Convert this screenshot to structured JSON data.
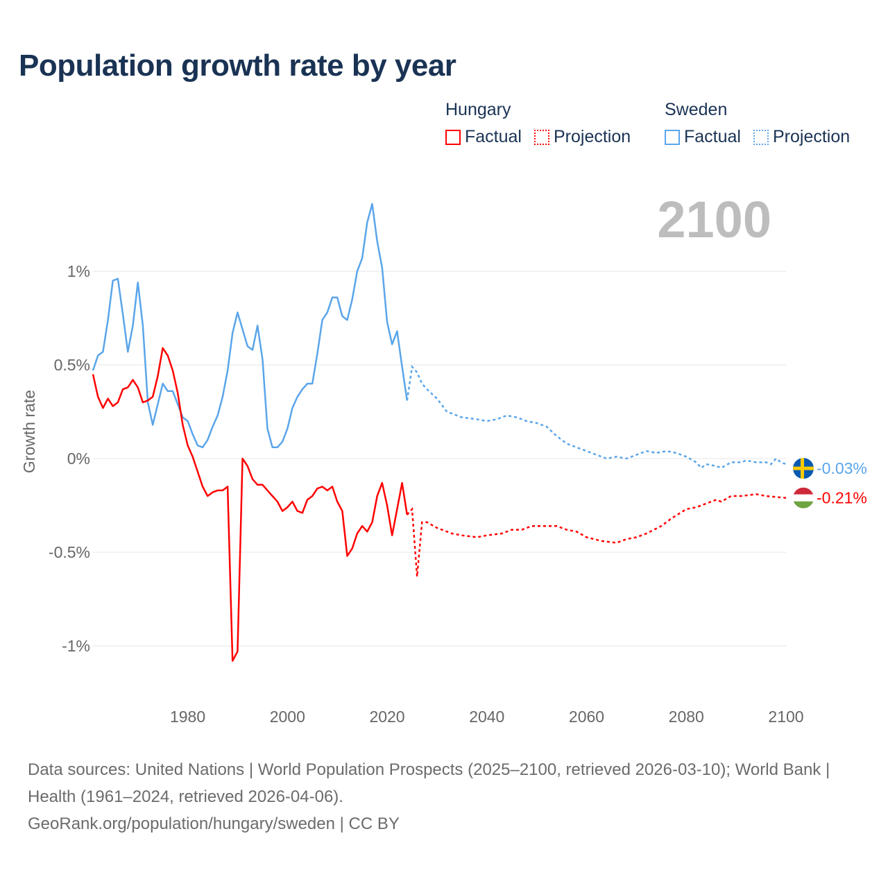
{
  "title": "Population growth rate by year",
  "legend": [
    {
      "country": "Hungary",
      "factual": "Factual",
      "projection": "Projection",
      "color": "#ff0000"
    },
    {
      "country": "Sweden",
      "factual": "Factual",
      "projection": "Projection",
      "color": "#5aa5ea"
    }
  ],
  "footer": {
    "sources": "Data sources: United Nations | World Population Prospects (2025–2100, retrieved 2026-03-10); World Bank | Health (1961–2024, retrieved 2026-04-06).",
    "link": "GeoRank.org/population/hungary/sweden | CC BY"
  },
  "chart_data": {
    "type": "line",
    "title": "Population growth rate by year",
    "ylabel": "Growth rate",
    "xlabel": "",
    "year_display": "2100",
    "xlim": [
      1961,
      2100
    ],
    "ylim": [
      -1.2,
      1.5
    ],
    "x_ticks": [
      1980,
      2000,
      2020,
      2040,
      2060,
      2080,
      2100
    ],
    "y_ticks": [
      {
        "v": 1,
        "label": "1%"
      },
      {
        "v": 0.5,
        "label": "0.5%"
      },
      {
        "v": 0,
        "label": "0%"
      },
      {
        "v": -0.5,
        "label": "-0.5%"
      },
      {
        "v": -1,
        "label": "-1%"
      }
    ],
    "grid": true,
    "series": [
      {
        "name": "Sweden",
        "color": "#5aa5ea",
        "end_label": "-0.03%",
        "flag": "sweden-flag",
        "factual": [
          [
            1961,
            0.47
          ],
          [
            1962,
            0.55
          ],
          [
            1963,
            0.57
          ],
          [
            1964,
            0.74
          ],
          [
            1965,
            0.95
          ],
          [
            1966,
            0.96
          ],
          [
            1967,
            0.77
          ],
          [
            1968,
            0.57
          ],
          [
            1969,
            0.71
          ],
          [
            1970,
            0.94
          ],
          [
            1971,
            0.71
          ],
          [
            1972,
            0.3
          ],
          [
            1973,
            0.18
          ],
          [
            1974,
            0.29
          ],
          [
            1975,
            0.4
          ],
          [
            1976,
            0.36
          ],
          [
            1977,
            0.36
          ],
          [
            1978,
            0.29
          ],
          [
            1979,
            0.22
          ],
          [
            1980,
            0.2
          ],
          [
            1981,
            0.13
          ],
          [
            1982,
            0.07
          ],
          [
            1983,
            0.06
          ],
          [
            1984,
            0.1
          ],
          [
            1985,
            0.17
          ],
          [
            1986,
            0.23
          ],
          [
            1987,
            0.33
          ],
          [
            1988,
            0.47
          ],
          [
            1989,
            0.67
          ],
          [
            1990,
            0.78
          ],
          [
            1991,
            0.69
          ],
          [
            1992,
            0.6
          ],
          [
            1993,
            0.58
          ],
          [
            1994,
            0.71
          ],
          [
            1995,
            0.53
          ],
          [
            1996,
            0.16
          ],
          [
            1997,
            0.06
          ],
          [
            1998,
            0.06
          ],
          [
            1999,
            0.09
          ],
          [
            2000,
            0.16
          ],
          [
            2001,
            0.27
          ],
          [
            2002,
            0.33
          ],
          [
            2003,
            0.37
          ],
          [
            2004,
            0.4
          ],
          [
            2005,
            0.4
          ],
          [
            2006,
            0.56
          ],
          [
            2007,
            0.74
          ],
          [
            2008,
            0.78
          ],
          [
            2009,
            0.86
          ],
          [
            2010,
            0.86
          ],
          [
            2011,
            0.76
          ],
          [
            2012,
            0.74
          ],
          [
            2013,
            0.85
          ],
          [
            2014,
            1.0
          ],
          [
            2015,
            1.07
          ],
          [
            2016,
            1.26
          ],
          [
            2017,
            1.36
          ],
          [
            2018,
            1.16
          ],
          [
            2019,
            1.02
          ],
          [
            2020,
            0.73
          ],
          [
            2021,
            0.61
          ],
          [
            2022,
            0.68
          ],
          [
            2023,
            0.49
          ],
          [
            2024,
            0.31
          ]
        ],
        "projection": [
          [
            2024,
            0.31
          ],
          [
            2025,
            0.49
          ],
          [
            2026,
            0.46
          ],
          [
            2027,
            0.4
          ],
          [
            2028,
            0.37
          ],
          [
            2030,
            0.32
          ],
          [
            2032,
            0.25
          ],
          [
            2035,
            0.22
          ],
          [
            2038,
            0.21
          ],
          [
            2040,
            0.2
          ],
          [
            2042,
            0.21
          ],
          [
            2044,
            0.23
          ],
          [
            2046,
            0.22
          ],
          [
            2048,
            0.2
          ],
          [
            2050,
            0.19
          ],
          [
            2052,
            0.17
          ],
          [
            2054,
            0.12
          ],
          [
            2056,
            0.08
          ],
          [
            2058,
            0.06
          ],
          [
            2060,
            0.04
          ],
          [
            2062,
            0.02
          ],
          [
            2064,
            0.0
          ],
          [
            2066,
            0.01
          ],
          [
            2068,
            0.0
          ],
          [
            2070,
            0.02
          ],
          [
            2072,
            0.04
          ],
          [
            2074,
            0.03
          ],
          [
            2076,
            0.04
          ],
          [
            2078,
            0.03
          ],
          [
            2080,
            0.01
          ],
          [
            2082,
            -0.02
          ],
          [
            2083,
            -0.05
          ],
          [
            2084,
            -0.03
          ],
          [
            2086,
            -0.04
          ],
          [
            2087,
            -0.05
          ],
          [
            2089,
            -0.02
          ],
          [
            2091,
            -0.02
          ],
          [
            2092,
            -0.01
          ],
          [
            2094,
            -0.02
          ],
          [
            2096,
            -0.02
          ],
          [
            2097,
            -0.03
          ],
          [
            2098,
            0.0
          ],
          [
            2099,
            -0.02
          ],
          [
            2100,
            -0.03
          ]
        ]
      },
      {
        "name": "Hungary",
        "color": "#ff0000",
        "end_label": "-0.21%",
        "flag": "hungary-flag",
        "factual": [
          [
            1961,
            0.45
          ],
          [
            1962,
            0.33
          ],
          [
            1963,
            0.27
          ],
          [
            1964,
            0.32
          ],
          [
            1965,
            0.28
          ],
          [
            1966,
            0.3
          ],
          [
            1967,
            0.37
          ],
          [
            1968,
            0.38
          ],
          [
            1969,
            0.42
          ],
          [
            1970,
            0.38
          ],
          [
            1971,
            0.3
          ],
          [
            1972,
            0.31
          ],
          [
            1973,
            0.33
          ],
          [
            1974,
            0.44
          ],
          [
            1975,
            0.59
          ],
          [
            1976,
            0.55
          ],
          [
            1977,
            0.47
          ],
          [
            1978,
            0.35
          ],
          [
            1979,
            0.18
          ],
          [
            1980,
            0.07
          ],
          [
            1981,
            0.01
          ],
          [
            1982,
            -0.07
          ],
          [
            1983,
            -0.15
          ],
          [
            1984,
            -0.2
          ],
          [
            1985,
            -0.18
          ],
          [
            1986,
            -0.17
          ],
          [
            1987,
            -0.17
          ],
          [
            1988,
            -0.15
          ],
          [
            1989,
            -1.08
          ],
          [
            1990,
            -1.03
          ],
          [
            1991,
            0.0
          ],
          [
            1992,
            -0.04
          ],
          [
            1993,
            -0.11
          ],
          [
            1994,
            -0.14
          ],
          [
            1995,
            -0.14
          ],
          [
            1996,
            -0.17
          ],
          [
            1997,
            -0.2
          ],
          [
            1998,
            -0.23
          ],
          [
            1999,
            -0.28
          ],
          [
            2000,
            -0.26
          ],
          [
            2001,
            -0.23
          ],
          [
            2002,
            -0.28
          ],
          [
            2003,
            -0.29
          ],
          [
            2004,
            -0.22
          ],
          [
            2005,
            -0.2
          ],
          [
            2006,
            -0.16
          ],
          [
            2007,
            -0.15
          ],
          [
            2008,
            -0.17
          ],
          [
            2009,
            -0.15
          ],
          [
            2010,
            -0.23
          ],
          [
            2011,
            -0.28
          ],
          [
            2012,
            -0.52
          ],
          [
            2013,
            -0.48
          ],
          [
            2014,
            -0.4
          ],
          [
            2015,
            -0.36
          ],
          [
            2016,
            -0.39
          ],
          [
            2017,
            -0.34
          ],
          [
            2018,
            -0.2
          ],
          [
            2019,
            -0.13
          ],
          [
            2020,
            -0.25
          ],
          [
            2021,
            -0.41
          ],
          [
            2022,
            -0.27
          ],
          [
            2023,
            -0.13
          ],
          [
            2024,
            -0.3
          ]
        ],
        "projection": [
          [
            2024,
            -0.3
          ],
          [
            2025,
            -0.27
          ],
          [
            2026,
            -0.63
          ],
          [
            2027,
            -0.34
          ],
          [
            2028,
            -0.34
          ],
          [
            2030,
            -0.37
          ],
          [
            2033,
            -0.4
          ],
          [
            2035,
            -0.41
          ],
          [
            2038,
            -0.42
          ],
          [
            2040,
            -0.41
          ],
          [
            2043,
            -0.4
          ],
          [
            2045,
            -0.38
          ],
          [
            2047,
            -0.38
          ],
          [
            2049,
            -0.36
          ],
          [
            2052,
            -0.36
          ],
          [
            2054,
            -0.36
          ],
          [
            2056,
            -0.38
          ],
          [
            2058,
            -0.39
          ],
          [
            2060,
            -0.42
          ],
          [
            2063,
            -0.44
          ],
          [
            2066,
            -0.45
          ],
          [
            2068,
            -0.43
          ],
          [
            2070,
            -0.42
          ],
          [
            2072,
            -0.4
          ],
          [
            2075,
            -0.36
          ],
          [
            2077,
            -0.32
          ],
          [
            2080,
            -0.27
          ],
          [
            2082,
            -0.26
          ],
          [
            2084,
            -0.24
          ],
          [
            2086,
            -0.22
          ],
          [
            2087,
            -0.23
          ],
          [
            2089,
            -0.2
          ],
          [
            2091,
            -0.2
          ],
          [
            2094,
            -0.19
          ],
          [
            2096,
            -0.2
          ],
          [
            2100,
            -0.21
          ]
        ]
      }
    ]
  }
}
